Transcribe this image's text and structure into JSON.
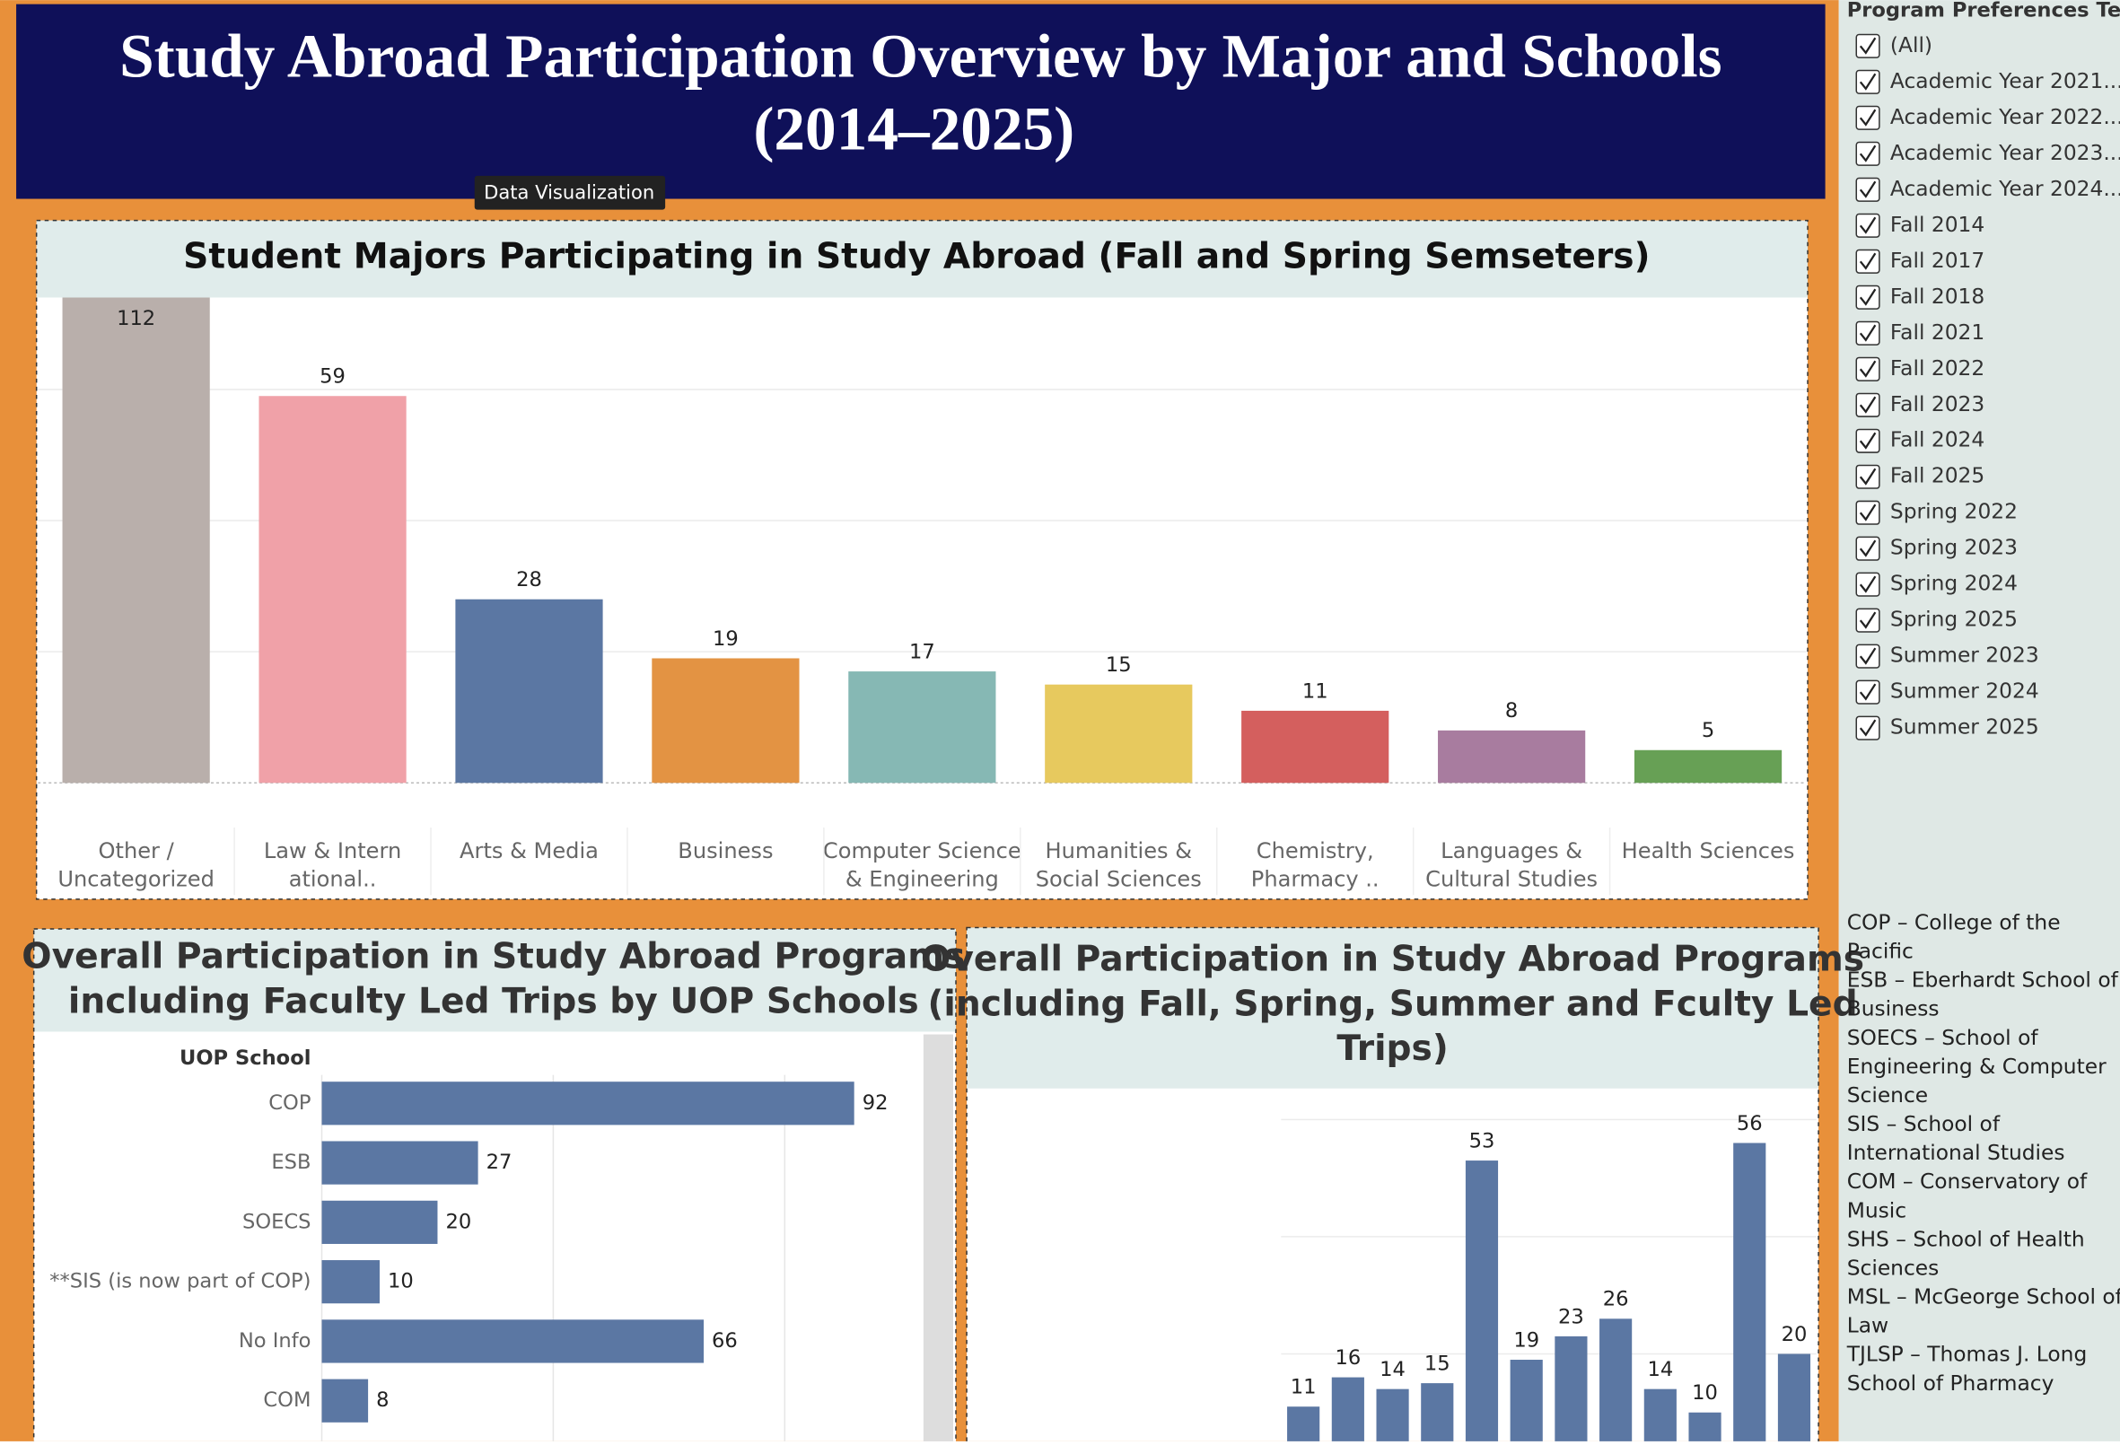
{
  "title": [
    "Study Abroad Participation Overview by Major and Schools",
    "(2014–2025)"
  ],
  "tooltip": "Data Visualization",
  "chart_data": [
    {
      "type": "bar",
      "title": "Student Majors Participating in Study Abroad (Fall and Spring Semseters)",
      "categories": [
        [
          "Other /",
          "Uncategorized"
        ],
        [
          "Law & Intern",
          "ational.."
        ],
        [
          "Arts & Media"
        ],
        [
          "Business"
        ],
        [
          "Computer Science",
          "& Engineering"
        ],
        [
          "Humanities &",
          "Social Sciences"
        ],
        [
          "Chemistry,",
          "Pharmacy .."
        ],
        [
          "Languages &",
          "Cultural Studies"
        ],
        [
          "Health Sciences"
        ]
      ],
      "values": [
        112,
        59,
        28,
        19,
        17,
        15,
        11,
        8,
        5
      ],
      "colors": [
        "#b9afab",
        "#f0a1a8",
        "#5b77a3",
        "#e39343",
        "#86b8b4",
        "#e7c95e",
        "#d45f5e",
        "#a87c9f",
        "#67a055"
      ],
      "ylim": [
        0,
        120
      ],
      "yticks": [
        0,
        20,
        40,
        60,
        80,
        100,
        120
      ],
      "grid": true
    },
    {
      "type": "hbar",
      "title": [
        "Overall Participation in Study Abroad Programs",
        "including Faculty Led Trips by UOP Schools"
      ],
      "y_label": "UOP School",
      "categories": [
        "COP",
        "ESB",
        "SOECS",
        "**SIS (is now part of COP)",
        "No Info",
        "COM"
      ],
      "values": [
        92,
        27,
        20,
        10,
        66,
        8
      ],
      "color": "#5b77a3",
      "xlim": [
        0,
        100
      ],
      "xticks": [
        0,
        40,
        80
      ],
      "grid": true
    },
    {
      "type": "bar",
      "title": [
        "Overall Participation in Study Abroad Programs",
        "(including Fall, Spring, Summer and Fculty Led",
        "Trips)"
      ],
      "values": [
        11,
        16,
        14,
        15,
        53,
        19,
        23,
        26,
        14,
        10,
        56,
        20
      ],
      "color": "#5b77a3",
      "ylim": [
        0,
        60
      ],
      "yticks": [
        0,
        20,
        40,
        60
      ],
      "grid": true
    }
  ],
  "filter": {
    "title": "Program Preferences Ter...",
    "items": [
      "(All)",
      "Academic Year 2021...",
      "Academic Year 2022...",
      "Academic Year 2023...",
      "Academic Year 2024...",
      "Fall 2014",
      "Fall 2017",
      "Fall 2018",
      "Fall 2021",
      "Fall 2022",
      "Fall 2023",
      "Fall 2024",
      "Fall 2025",
      "Spring 2022",
      "Spring 2023",
      "Spring 2024",
      "Spring 2025",
      "Summer 2023",
      "Summer 2024",
      "Summer 2025"
    ]
  },
  "school_key": [
    "COP – College of the",
    "Pacific",
    "ESB – Eberhardt School of",
    "Business",
    "SOECS – School of",
    "Engineering & Computer",
    "Science",
    "SIS – School of",
    "International Studies",
    "COM – Conservatory of",
    "Music",
    "SHS – School of Health",
    "Sciences",
    "MSL – McGeorge School of",
    "Law",
    "TJLSP – Thomas J. Long",
    "School of Pharmacy"
  ]
}
